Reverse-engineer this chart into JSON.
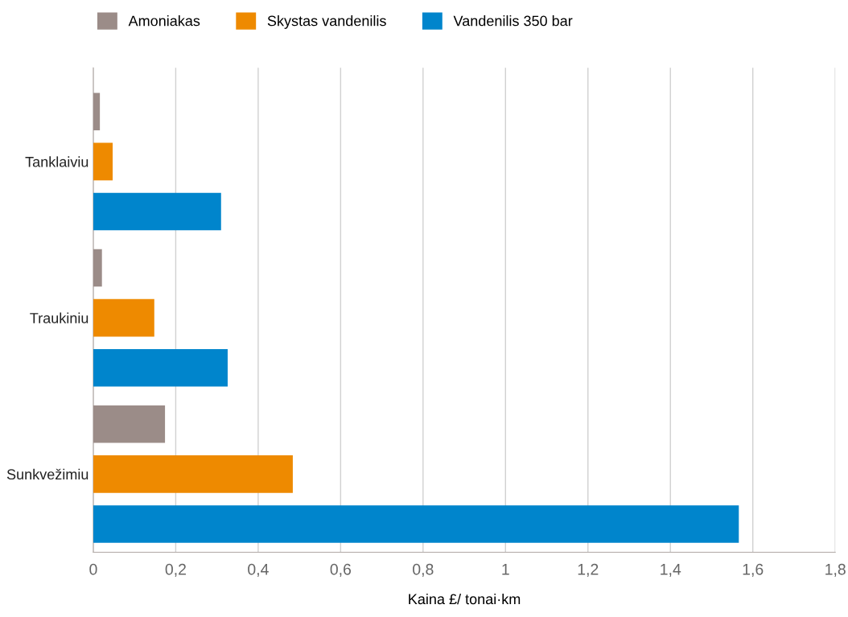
{
  "chart_data": {
    "type": "bar",
    "orientation": "horizontal",
    "xlabel": "Kaina £/ tonai·km",
    "categories": [
      "Tanklaiviu",
      "Traukiniu",
      "Sunkvežimiu"
    ],
    "series": [
      {
        "name": "Amoniakas",
        "color": "#9b8c88",
        "values": [
          0.016,
          0.021,
          0.174
        ]
      },
      {
        "name": "Skystas vandenilis",
        "color": "#ee8a00",
        "values": [
          0.047,
          0.148,
          0.484
        ]
      },
      {
        "name": "Vandenilis 350 bar",
        "color": "#0085cc",
        "values": [
          0.31,
          0.326,
          1.566
        ]
      }
    ],
    "xlim": [
      0,
      1.8
    ],
    "xticks": [
      0,
      {
        "value": 0.2,
        "label": "0,2"
      },
      {
        "value": 0.4,
        "label": "0,4"
      },
      {
        "value": 0.6,
        "label": "0,6"
      },
      {
        "value": 0.8,
        "label": "0,8"
      },
      1,
      {
        "value": 1.2,
        "label": "1,2"
      },
      {
        "value": 1.4,
        "label": "1,4"
      },
      {
        "value": 1.6,
        "label": "1,6"
      },
      {
        "value": 1.8,
        "label": "1,8"
      }
    ],
    "grid": "x",
    "legend": "top left"
  }
}
